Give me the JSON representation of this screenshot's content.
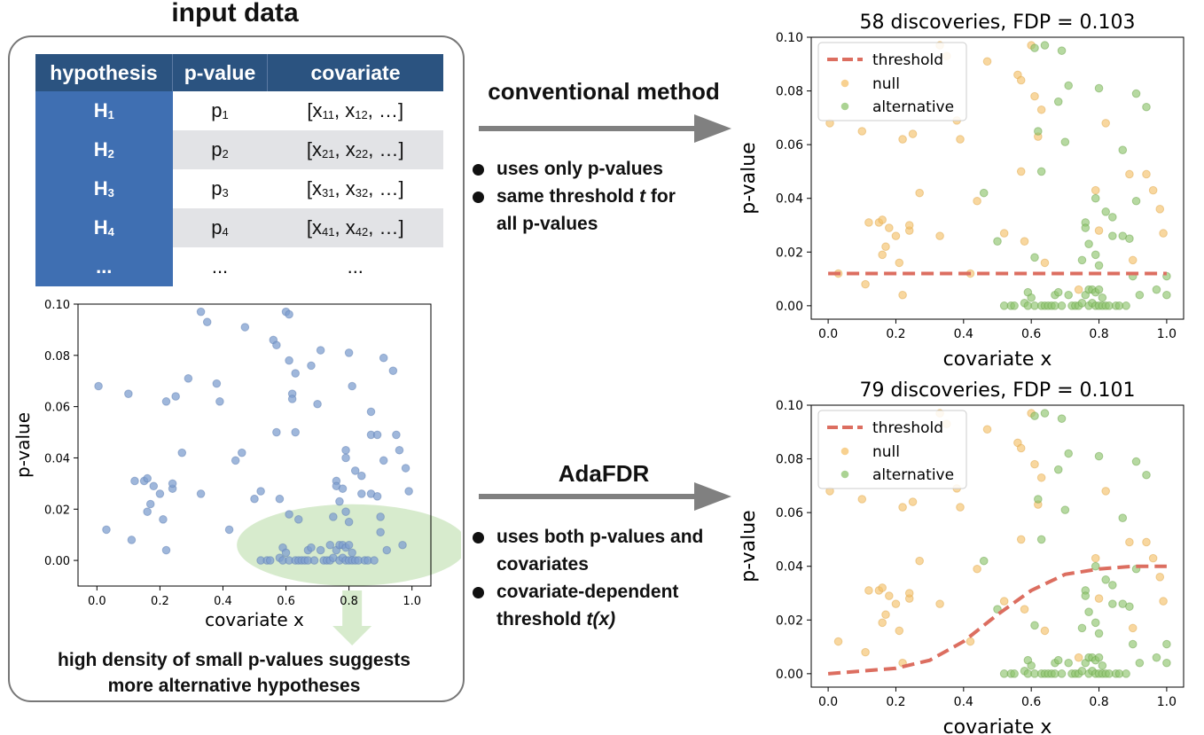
{
  "input_panel": {
    "title": "input data",
    "table": {
      "headers": [
        "hypothesis",
        "p-value",
        "covariate"
      ],
      "rows": [
        {
          "h": "H",
          "h_sub": "1",
          "p": "p",
          "p_sub": "1",
          "c_pre": "[x",
          "c1_sub": "11",
          "c_mid": ", x",
          "c2_sub": "12",
          "c_post": ", …]"
        },
        {
          "h": "H",
          "h_sub": "2",
          "p": "p",
          "p_sub": "2",
          "c_pre": "[x",
          "c1_sub": "21",
          "c_mid": ", x",
          "c2_sub": "22",
          "c_post": ", …]"
        },
        {
          "h": "H",
          "h_sub": "3",
          "p": "p",
          "p_sub": "3",
          "c_pre": "[x",
          "c1_sub": "31",
          "c_mid": ", x",
          "c2_sub": "32",
          "c_post": ", …]"
        },
        {
          "h": "H",
          "h_sub": "4",
          "p": "p",
          "p_sub": "4",
          "c_pre": "[x",
          "c1_sub": "41",
          "c_mid": ", x",
          "c2_sub": "42",
          "c_post": ", …]"
        },
        {
          "h": "...",
          "h_sub": "",
          "p": "...",
          "p_sub": "",
          "c_pre": "...",
          "c1_sub": "",
          "c_mid": "",
          "c2_sub": "",
          "c_post": ""
        }
      ]
    },
    "caption_line1": "high density of small p-values suggests",
    "caption_line2": "more alternative hypotheses"
  },
  "conventional": {
    "title": "conventional method",
    "bullets": [
      {
        "text": "uses only p-values",
        "line2_pre": "",
        "line2_it": "",
        "line3": ""
      },
      {
        "text": "same threshold ",
        "italic": "t",
        "text_post": " for",
        "line2": "all p-values"
      }
    ]
  },
  "adafdr": {
    "title": "AdaFDR",
    "bullets": [
      {
        "line1": "uses both p-values and",
        "line2": "covariates"
      },
      {
        "line1": "covariate-dependent",
        "line2": "threshold ",
        "italic": "t(x)"
      }
    ]
  },
  "colors": {
    "table_header": "#2b5380",
    "table_hyp": "#3f6fb2",
    "row_shade": "#e2e3e6",
    "input_point": "#7f9fcf",
    "null_point": "#f5c26b",
    "alt_point": "#8fc46f",
    "threshold": "#dc6e60",
    "highlight_ellipse": "#d7ebcd",
    "arrow": "#808080"
  },
  "chart_data": [
    {
      "type": "scatter",
      "id": "input",
      "title": "",
      "xlabel": "covariate x",
      "ylabel": "p-value",
      "xlim": [
        -0.06,
        1.06
      ],
      "ylim": [
        -0.01,
        0.1
      ],
      "xticks": [
        "0.0",
        "0.2",
        "0.4",
        "0.6",
        "0.8",
        "1.0"
      ],
      "yticks": [
        "0.00",
        "0.02",
        "0.04",
        "0.06",
        "0.08",
        "0.10"
      ],
      "grid": false,
      "series": [
        {
          "points": [
            [
              0.005,
              0.068
            ],
            [
              0.03,
              0.012
            ],
            [
              0.1,
              0.065
            ],
            [
              0.11,
              0.008
            ],
            [
              0.12,
              0.031
            ],
            [
              0.15,
              0.031
            ],
            [
              0.16,
              0.032
            ],
            [
              0.16,
              0.019
            ],
            [
              0.17,
              0.022
            ],
            [
              0.18,
              0.029
            ],
            [
              0.2,
              0.026
            ],
            [
              0.21,
              0.016
            ],
            [
              0.22,
              0.062
            ],
            [
              0.22,
              0.004
            ],
            [
              0.24,
              0.028
            ],
            [
              0.24,
              0.03
            ],
            [
              0.25,
              0.064
            ],
            [
              0.27,
              0.042
            ],
            [
              0.29,
              0.071
            ],
            [
              0.33,
              0.097
            ],
            [
              0.33,
              0.026
            ],
            [
              0.35,
              0.093
            ],
            [
              0.38,
              0.069
            ],
            [
              0.39,
              0.062
            ],
            [
              0.42,
              0.012
            ],
            [
              0.44,
              0.039
            ],
            [
              0.46,
              0.042
            ],
            [
              0.47,
              0.091
            ],
            [
              0.5,
              0.024
            ],
            [
              0.52,
              0.027
            ],
            [
              0.52,
              0.0
            ],
            [
              0.54,
              0.0
            ],
            [
              0.55,
              0.0
            ],
            [
              0.56,
              0.086
            ],
            [
              0.57,
              0.084
            ],
            [
              0.57,
              0.05
            ],
            [
              0.58,
              0.024
            ],
            [
              0.58,
              0.001
            ],
            [
              0.59,
              0.0
            ],
            [
              0.59,
              0.005
            ],
            [
              0.6,
              0.097
            ],
            [
              0.6,
              0.003
            ],
            [
              0.61,
              0.096
            ],
            [
              0.61,
              0.078
            ],
            [
              0.61,
              0.018
            ],
            [
              0.61,
              0.0
            ],
            [
              0.62,
              0.065
            ],
            [
              0.62,
              0.063
            ],
            [
              0.63,
              0.073
            ],
            [
              0.63,
              0.05
            ],
            [
              0.63,
              0.0
            ],
            [
              0.64,
              0.016
            ],
            [
              0.64,
              0.0
            ],
            [
              0.65,
              0.0
            ],
            [
              0.66,
              0.0
            ],
            [
              0.67,
              0.0
            ],
            [
              0.67,
              0.004
            ],
            [
              0.68,
              0.076
            ],
            [
              0.68,
              0.005
            ],
            [
              0.69,
              0.0
            ],
            [
              0.7,
              0.061
            ],
            [
              0.71,
              0.082
            ],
            [
              0.71,
              0.004
            ],
            [
              0.72,
              0.0
            ],
            [
              0.73,
              0.0
            ],
            [
              0.74,
              0.006
            ],
            [
              0.74,
              0.0
            ],
            [
              0.75,
              0.017
            ],
            [
              0.75,
              0.001
            ],
            [
              0.76,
              0.031
            ],
            [
              0.76,
              0.029
            ],
            [
              0.76,
              0.004
            ],
            [
              0.77,
              0.023
            ],
            [
              0.77,
              0.006
            ],
            [
              0.77,
              0.0
            ],
            [
              0.78,
              0.028
            ],
            [
              0.78,
              0.006
            ],
            [
              0.78,
              0.001
            ],
            [
              0.79,
              0.043
            ],
            [
              0.79,
              0.04
            ],
            [
              0.79,
              0.019
            ],
            [
              0.79,
              0.005
            ],
            [
              0.79,
              0.0
            ],
            [
              0.8,
              0.081
            ],
            [
              0.8,
              0.015
            ],
            [
              0.8,
              0.006
            ],
            [
              0.8,
              0.0
            ],
            [
              0.81,
              0.068
            ],
            [
              0.81,
              0.003
            ],
            [
              0.81,
              0.0
            ],
            [
              0.82,
              0.035
            ],
            [
              0.82,
              0.0
            ],
            [
              0.83,
              0.0
            ],
            [
              0.84,
              0.033
            ],
            [
              0.84,
              0.026
            ],
            [
              0.85,
              0.0
            ],
            [
              0.86,
              0.0
            ],
            [
              0.87,
              0.058
            ],
            [
              0.87,
              0.049
            ],
            [
              0.87,
              0.026
            ],
            [
              0.88,
              0.0
            ],
            [
              0.89,
              0.049
            ],
            [
              0.89,
              0.025
            ],
            [
              0.9,
              0.017
            ],
            [
              0.9,
              0.011
            ],
            [
              0.91,
              0.079
            ],
            [
              0.91,
              0.039
            ],
            [
              0.92,
              0.004
            ],
            [
              0.94,
              0.074
            ],
            [
              0.95,
              0.049
            ],
            [
              0.96,
              0.043
            ],
            [
              0.97,
              0.006
            ],
            [
              0.98,
              0.036
            ],
            [
              0.99,
              0.027
            ]
          ]
        }
      ]
    },
    {
      "type": "scatter",
      "id": "conventional",
      "title": "58 discoveries, FDP = 0.103",
      "xlabel": "covariate x",
      "ylabel": "p-value",
      "xlim": [
        -0.05,
        1.05
      ],
      "ylim": [
        -0.005,
        0.1
      ],
      "xticks": [
        "0.0",
        "0.2",
        "0.4",
        "0.6",
        "0.8",
        "1.0"
      ],
      "yticks": [
        "0.00",
        "0.02",
        "0.04",
        "0.06",
        "0.08",
        "0.10"
      ],
      "grid": false,
      "legend": {
        "position": "top-left",
        "entries": [
          "threshold",
          "null",
          "alternative"
        ]
      },
      "threshold": {
        "type": "constant",
        "value": 0.012
      }
    },
    {
      "type": "scatter",
      "id": "adafdr",
      "title": "79 discoveries, FDP = 0.101",
      "xlabel": "covariate x",
      "ylabel": "p-value",
      "xlim": [
        -0.05,
        1.05
      ],
      "ylim": [
        -0.005,
        0.1
      ],
      "xticks": [
        "0.0",
        "0.2",
        "0.4",
        "0.6",
        "0.8",
        "1.0"
      ],
      "yticks": [
        "0.00",
        "0.02",
        "0.04",
        "0.06",
        "0.08",
        "0.10"
      ],
      "grid": false,
      "legend": {
        "position": "top-left",
        "entries": [
          "threshold",
          "null",
          "alternative"
        ]
      },
      "threshold": {
        "type": "curve",
        "points": [
          [
            0.0,
            0.0
          ],
          [
            0.1,
            0.001
          ],
          [
            0.2,
            0.002
          ],
          [
            0.3,
            0.005
          ],
          [
            0.4,
            0.012
          ],
          [
            0.5,
            0.022
          ],
          [
            0.6,
            0.031
          ],
          [
            0.7,
            0.037
          ],
          [
            0.8,
            0.039
          ],
          [
            0.9,
            0.04
          ],
          [
            1.0,
            0.04
          ]
        ]
      }
    }
  ],
  "scatter_groups": {
    "null": [
      [
        0.005,
        0.068
      ],
      [
        0.03,
        0.012
      ],
      [
        0.1,
        0.065
      ],
      [
        0.11,
        0.008
      ],
      [
        0.12,
        0.031
      ],
      [
        0.15,
        0.031
      ],
      [
        0.16,
        0.032
      ],
      [
        0.16,
        0.019
      ],
      [
        0.17,
        0.022
      ],
      [
        0.18,
        0.029
      ],
      [
        0.2,
        0.026
      ],
      [
        0.21,
        0.016
      ],
      [
        0.22,
        0.062
      ],
      [
        0.22,
        0.004
      ],
      [
        0.24,
        0.028
      ],
      [
        0.24,
        0.03
      ],
      [
        0.25,
        0.064
      ],
      [
        0.27,
        0.042
      ],
      [
        0.33,
        0.097
      ],
      [
        0.33,
        0.026
      ],
      [
        0.35,
        0.093
      ],
      [
        0.38,
        0.069
      ],
      [
        0.39,
        0.062
      ],
      [
        0.42,
        0.012
      ],
      [
        0.44,
        0.039
      ],
      [
        0.47,
        0.091
      ],
      [
        0.52,
        0.027
      ],
      [
        0.56,
        0.086
      ],
      [
        0.57,
        0.084
      ],
      [
        0.57,
        0.05
      ],
      [
        0.58,
        0.024
      ],
      [
        0.6,
        0.097
      ],
      [
        0.61,
        0.078
      ],
      [
        0.62,
        0.063
      ],
      [
        0.63,
        0.073
      ],
      [
        0.82,
        0.068
      ],
      [
        0.79,
        0.043
      ],
      [
        0.89,
        0.049
      ],
      [
        0.9,
        0.017
      ],
      [
        0.94,
        0.049
      ],
      [
        0.96,
        0.043
      ],
      [
        0.98,
        0.036
      ],
      [
        0.99,
        0.027
      ],
      [
        0.8,
        0.028
      ],
      [
        0.64,
        0.016
      ],
      [
        0.74,
        0.006
      ]
    ],
    "alternative": [
      [
        0.46,
        0.042
      ],
      [
        0.5,
        0.024
      ],
      [
        0.52,
        0.0
      ],
      [
        0.54,
        0.0
      ],
      [
        0.55,
        0.0
      ],
      [
        0.58,
        0.001
      ],
      [
        0.59,
        0.0
      ],
      [
        0.59,
        0.005
      ],
      [
        0.6,
        0.003
      ],
      [
        0.61,
        0.096
      ],
      [
        0.61,
        0.018
      ],
      [
        0.61,
        0.0
      ],
      [
        0.62,
        0.065
      ],
      [
        0.63,
        0.05
      ],
      [
        0.63,
        0.0
      ],
      [
        0.64,
        0.0
      ],
      [
        0.65,
        0.0
      ],
      [
        0.66,
        0.0
      ],
      [
        0.67,
        0.0
      ],
      [
        0.67,
        0.004
      ],
      [
        0.68,
        0.076
      ],
      [
        0.68,
        0.005
      ],
      [
        0.69,
        0.0
      ],
      [
        0.7,
        0.061
      ],
      [
        0.71,
        0.082
      ],
      [
        0.71,
        0.004
      ],
      [
        0.72,
        0.0
      ],
      [
        0.73,
        0.0
      ],
      [
        0.74,
        0.0
      ],
      [
        0.75,
        0.017
      ],
      [
        0.75,
        0.001
      ],
      [
        0.76,
        0.031
      ],
      [
        0.76,
        0.029
      ],
      [
        0.76,
        0.004
      ],
      [
        0.77,
        0.023
      ],
      [
        0.77,
        0.006
      ],
      [
        0.77,
        0.0
      ],
      [
        0.78,
        0.006
      ],
      [
        0.78,
        0.001
      ],
      [
        0.79,
        0.04
      ],
      [
        0.79,
        0.019
      ],
      [
        0.79,
        0.005
      ],
      [
        0.79,
        0.0
      ],
      [
        0.8,
        0.081
      ],
      [
        0.8,
        0.015
      ],
      [
        0.8,
        0.006
      ],
      [
        0.8,
        0.0
      ],
      [
        0.81,
        0.003
      ],
      [
        0.81,
        0.0
      ],
      [
        0.82,
        0.035
      ],
      [
        0.82,
        0.0
      ],
      [
        0.83,
        0.0
      ],
      [
        0.84,
        0.033
      ],
      [
        0.84,
        0.026
      ],
      [
        0.85,
        0.0
      ],
      [
        0.86,
        0.0
      ],
      [
        0.87,
        0.058
      ],
      [
        0.87,
        0.026
      ],
      [
        0.88,
        0.0
      ],
      [
        0.89,
        0.025
      ],
      [
        0.9,
        0.011
      ],
      [
        0.91,
        0.079
      ],
      [
        0.91,
        0.039
      ],
      [
        0.92,
        0.004
      ],
      [
        0.94,
        0.074
      ],
      [
        0.97,
        0.006
      ],
      [
        1.0,
        0.011
      ],
      [
        1.0,
        0.004
      ],
      [
        0.69,
        0.095
      ],
      [
        0.64,
        0.097
      ]
    ]
  }
}
